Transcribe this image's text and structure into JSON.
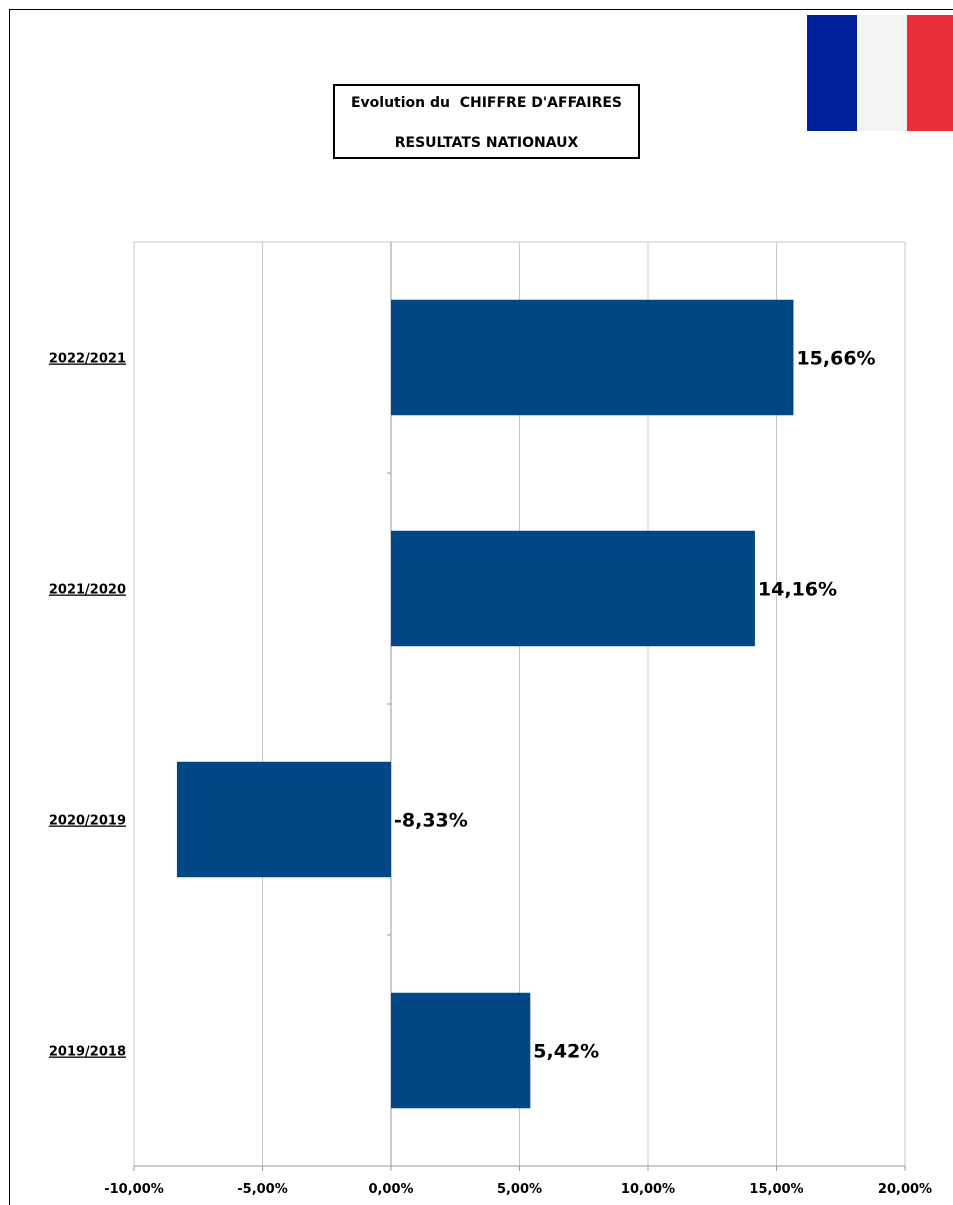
{
  "title": {
    "line1": "Evolution du  CHIFFRE D'AFFAIRES",
    "line2": "RESULTATS NATIONAUX"
  },
  "flag": {
    "icon": "france-flag-icon",
    "colors": [
      "#00209a",
      "#f4f4f4",
      "#ea2d3a"
    ]
  },
  "colors": {
    "bar": "#004784",
    "grid": "#c8c8c8",
    "axis": "#999999"
  },
  "chart_data": {
    "type": "bar",
    "orientation": "horizontal",
    "categories": [
      "2022/2021",
      "2021/2020",
      "2020/2019",
      "2019/2018"
    ],
    "values": [
      15.66,
      14.16,
      -8.33,
      5.42
    ],
    "data_labels": [
      "15,66%",
      "14,16%",
      "-8,33%",
      "5,42%"
    ],
    "xlim": [
      -10,
      20
    ],
    "x_ticks": [
      -10,
      -5,
      0,
      5,
      10,
      15,
      20
    ],
    "x_tick_labels": [
      "-10,00%",
      "-5,00%",
      "0,00%",
      "5,00%",
      "10,00%",
      "15,00%",
      "20,00%"
    ],
    "grid": true,
    "legend": "none"
  }
}
